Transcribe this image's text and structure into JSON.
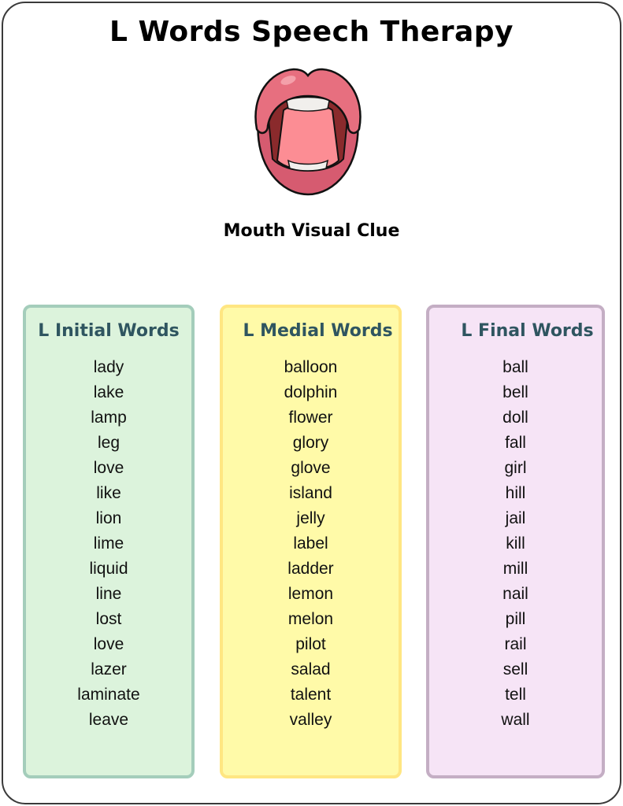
{
  "title": "L Words Speech Therapy",
  "image": {
    "icon": "open-mouth-icon"
  },
  "subtitle": "Mouth Visual Clue",
  "columns": [
    {
      "heading": "L Initial Words",
      "color": "#dcf3dc",
      "words": [
        "lady",
        "lake",
        "lamp",
        "leg",
        "love",
        "like",
        "lion",
        "lime",
        "liquid",
        "line",
        "lost",
        "love",
        "lazer",
        "laminate",
        "leave"
      ]
    },
    {
      "heading": "L Medial Words",
      "color": "#fffaa8",
      "words": [
        "balloon",
        "dolphin",
        "flower",
        "glory",
        "glove",
        "island",
        "jelly",
        "label",
        "ladder",
        "lemon",
        "melon",
        "pilot",
        "salad",
        "talent",
        "valley"
      ]
    },
    {
      "heading": "L Final Words",
      "color": "#f6e4f6",
      "words": [
        "ball",
        "bell",
        "doll",
        "fall",
        "girl",
        "hill",
        "jail",
        "kill",
        "mill",
        "nail",
        "pill",
        "rail",
        "sell",
        "tell",
        "wall"
      ]
    }
  ]
}
